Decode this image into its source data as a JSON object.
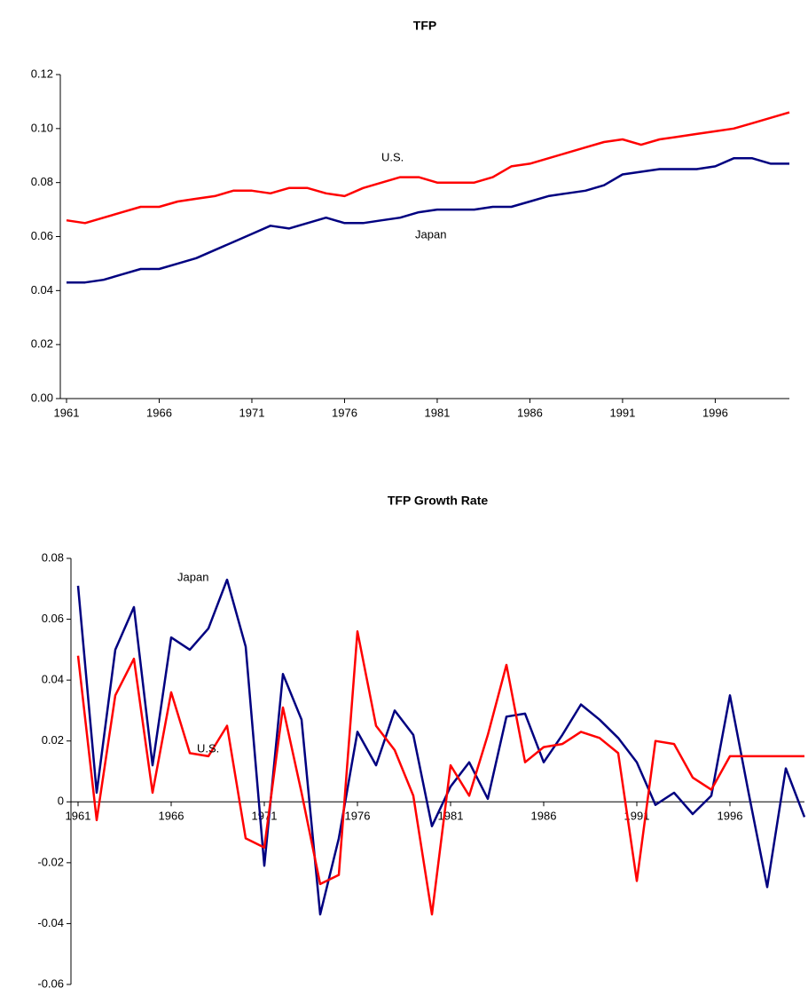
{
  "chart_data": [
    {
      "type": "line",
      "title": "TFP",
      "x": [
        1961,
        1962,
        1963,
        1964,
        1965,
        1966,
        1967,
        1968,
        1969,
        1970,
        1971,
        1972,
        1973,
        1974,
        1975,
        1976,
        1977,
        1978,
        1979,
        1980,
        1981,
        1982,
        1983,
        1984,
        1985,
        1986,
        1987,
        1988,
        1989,
        1990,
        1991,
        1992,
        1993,
        1994,
        1995,
        1996,
        1997,
        1998,
        1999,
        2000
      ],
      "xlim": [
        1961,
        2000
      ],
      "xticks": [
        1961,
        1966,
        1971,
        1976,
        1981,
        1986,
        1991,
        1996
      ],
      "ylim": [
        0,
        0.12
      ],
      "yticks": [
        {
          "value": 0,
          "label": "0.00"
        },
        0.02,
        0.04,
        0.06,
        0.08,
        {
          "value": 0.1,
          "label": "0.10"
        },
        0.12
      ],
      "series": [
        {
          "name": "U.S.",
          "color": "#ff0000",
          "values": [
            0.066,
            0.065,
            0.067,
            0.069,
            0.071,
            0.071,
            0.073,
            0.074,
            0.075,
            0.077,
            0.077,
            0.076,
            0.078,
            0.078,
            0.076,
            0.075,
            0.078,
            0.08,
            0.082,
            0.082,
            0.08,
            0.08,
            0.08,
            0.082,
            0.086,
            0.087,
            0.089,
            0.091,
            0.093,
            0.095,
            0.096,
            0.094,
            0.096,
            0.097,
            0.098,
            0.099,
            0.1,
            0.102,
            0.104,
            0.106
          ]
        },
        {
          "name": "Japan",
          "color": "#000080",
          "values": [
            0.043,
            0.043,
            0.044,
            0.046,
            0.048,
            0.048,
            0.05,
            0.052,
            0.055,
            0.058,
            0.061,
            0.064,
            0.063,
            0.065,
            0.067,
            0.065,
            0.065,
            0.066,
            0.067,
            0.069,
            0.07,
            0.07,
            0.07,
            0.071,
            0.071,
            0.073,
            0.075,
            0.076,
            0.077,
            0.079,
            0.083,
            0.084,
            0.085,
            0.085,
            0.085,
            0.086,
            0.089,
            0.089,
            0.087,
            0.087
          ]
        }
      ],
      "annotations": [
        "U.S.",
        "Japan"
      ]
    },
    {
      "type": "line",
      "title": "TFP Growth Rate",
      "x": [
        1961,
        1962,
        1963,
        1964,
        1965,
        1966,
        1967,
        1968,
        1969,
        1970,
        1971,
        1972,
        1973,
        1974,
        1975,
        1976,
        1977,
        1978,
        1979,
        1980,
        1981,
        1982,
        1983,
        1984,
        1985,
        1986,
        1987,
        1988,
        1989,
        1990,
        1991,
        1992,
        1993,
        1994,
        1995,
        1996,
        1997,
        1998,
        1999,
        2000
      ],
      "xlim": [
        1961,
        2000
      ],
      "xticks": [
        1961,
        1966,
        1971,
        1976,
        1981,
        1986,
        1991,
        1996
      ],
      "ylim": [
        -0.06,
        0.08
      ],
      "yticks": [
        -0.06,
        -0.04,
        -0.02,
        0,
        0.02,
        0.04,
        0.06,
        0.08
      ],
      "series": [
        {
          "name": "Japan",
          "color": "#000080",
          "values": [
            0.071,
            0.003,
            0.05,
            0.064,
            0.012,
            0.054,
            0.05,
            0.057,
            0.073,
            0.051,
            -0.021,
            0.042,
            0.027,
            -0.037,
            -0.012,
            0.023,
            0.012,
            0.03,
            0.022,
            -0.008,
            0.005,
            0.013,
            0.001,
            0.028,
            0.029,
            0.013,
            0.022,
            0.032,
            0.027,
            0.021,
            0.013,
            -0.001,
            0.003,
            -0.004,
            0.002,
            0.035,
            0.003,
            -0.028,
            0.011,
            -0.005
          ]
        },
        {
          "name": "U.S.",
          "color": "#ff0000",
          "values": [
            0.048,
            -0.006,
            0.035,
            0.047,
            0.003,
            0.036,
            0.016,
            0.015,
            0.025,
            -0.012,
            -0.015,
            0.031,
            0.003,
            -0.027,
            -0.024,
            0.056,
            0.025,
            0.017,
            0.002,
            -0.037,
            0.012,
            0.002,
            0.022,
            0.045,
            0.013,
            0.018,
            0.019,
            0.023,
            0.021,
            0.016,
            -0.026,
            0.02,
            0.019,
            0.008,
            0.004,
            0.015,
            0.015,
            0.015,
            0.015,
            0.015
          ]
        }
      ],
      "annotations": [
        "Japan",
        "U.S."
      ]
    }
  ]
}
